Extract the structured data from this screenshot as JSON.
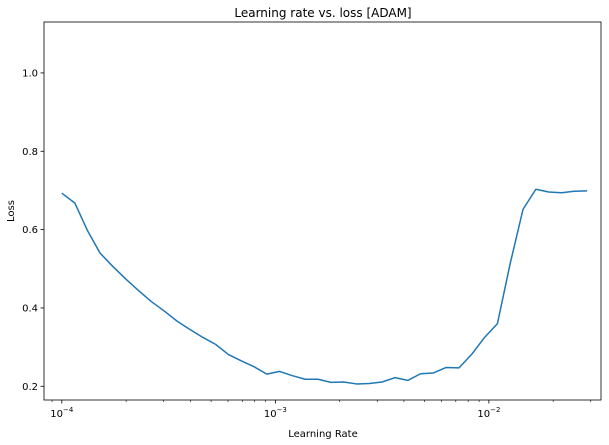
{
  "chart_data": {
    "type": "line",
    "title": "Learning rate vs. loss [ADAM]",
    "xlabel": "Learning Rate",
    "ylabel": "Loss",
    "xscale": "log",
    "xlim": [
      8.25e-05,
      0.0335
    ],
    "ylim": [
      0.165,
      1.13
    ],
    "grid": false,
    "line_color": "#1f77b4",
    "xticks": [
      {
        "value": 0.0001,
        "base": "10",
        "exp": "−4"
      },
      {
        "value": 0.001,
        "base": "10",
        "exp": "−3"
      },
      {
        "value": 0.01,
        "base": "10",
        "exp": "−2"
      }
    ],
    "yticks": [
      {
        "value": 0.2,
        "label": "0.2"
      },
      {
        "value": 0.4,
        "label": "0.4"
      },
      {
        "value": 0.6,
        "label": "0.6"
      },
      {
        "value": 0.8,
        "label": "0.8"
      },
      {
        "value": 1.0,
        "label": "1.0"
      }
    ],
    "series": [
      {
        "x": [
          0.0001,
          0.000115,
          0.000132,
          0.000151,
          0.000174,
          0.0002,
          0.000229,
          0.000263,
          0.000302,
          0.000347,
          0.000398,
          0.000457,
          0.000525,
          0.000603,
          0.000692,
          0.000794,
          0.000912,
          0.001047,
          0.001202,
          0.00138,
          0.001585,
          0.00182,
          0.002089,
          0.002399,
          0.002754,
          0.003162,
          0.003631,
          0.004169,
          0.004786,
          0.005495,
          0.00631,
          0.007244,
          0.008318,
          0.00955,
          0.010965,
          0.012589,
          0.014454,
          0.016596,
          0.019055,
          0.021878,
          0.025119,
          0.02884
        ],
        "y": [
          0.693,
          0.668,
          0.597,
          0.54,
          0.505,
          0.473,
          0.444,
          0.416,
          0.392,
          0.366,
          0.345,
          0.325,
          0.307,
          0.281,
          0.265,
          0.25,
          0.231,
          0.238,
          0.227,
          0.218,
          0.218,
          0.21,
          0.211,
          0.206,
          0.207,
          0.211,
          0.222,
          0.215,
          0.232,
          0.234,
          0.248,
          0.247,
          0.282,
          0.325,
          0.36,
          0.514,
          0.652,
          0.703,
          0.696,
          0.694,
          0.698,
          0.699
        ]
      }
    ]
  }
}
